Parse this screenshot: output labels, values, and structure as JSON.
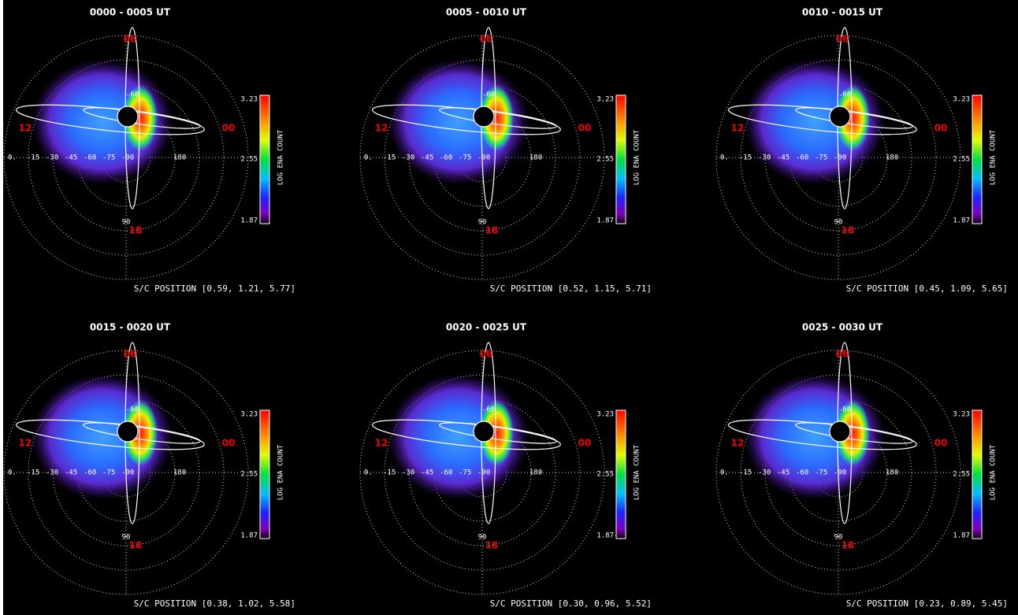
{
  "panels": [
    {
      "title": "0000 - 0005 UT",
      "position": "S/C POSITION [0.59, 1.21, 5.77]"
    },
    {
      "title": "0005 - 0010 UT",
      "position": "S/C POSITION [0.52, 1.15, 5.71]"
    },
    {
      "title": "0010 - 0015 UT",
      "position": "S/C POSITION [0.45, 1.09, 5.65]"
    },
    {
      "title": "0015 - 0020 UT",
      "position": "S/C POSITION [0.38, 1.02, 5.58]"
    },
    {
      "title": "0020 - 0025 UT",
      "position": "S/C POSITION [0.30, 0.96, 5.52]"
    },
    {
      "title": "0025 - 0030 UT",
      "position": "S/C POSITION [0.23, 0.89, 5.45]"
    }
  ],
  "colorbar": {
    "label": "LOG ENA COUNT",
    "max": "3.23",
    "mid": "2.55",
    "min": "1.87"
  },
  "local_time": {
    "top": "06",
    "left": "12",
    "right": "00",
    "bottom": "18"
  },
  "axis_labels": {
    "horizontal": [
      "0.",
      "-15",
      "-30",
      "-45",
      "-60",
      "-75",
      "-90"
    ],
    "right": "180",
    "bottom": "90",
    "top": "-60"
  }
}
